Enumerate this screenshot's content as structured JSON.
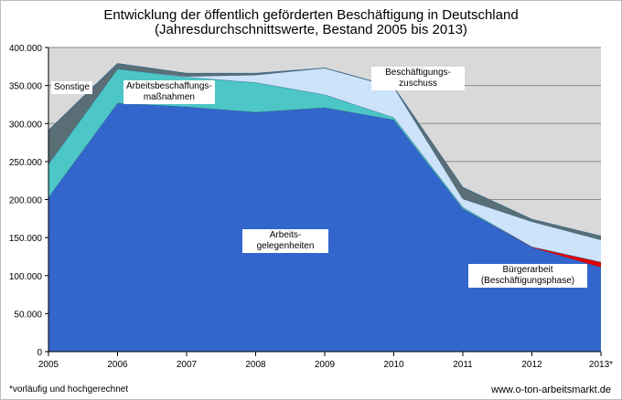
{
  "chart_data": {
    "type": "area",
    "stacked": true,
    "title": "Entwicklung  der öffentlich geförderten Beschäftigung in Deutschland",
    "subtitle": "(Jahresdurchschnittswerte, Bestand 2005 bis 2013)",
    "categories": [
      "2005",
      "2006",
      "2007",
      "2008",
      "2009",
      "2010",
      "2011",
      "2012",
      "2013*"
    ],
    "y_ticks": [
      "0",
      "50.000",
      "100.000",
      "150.000",
      "200.000",
      "250.000",
      "300.000",
      "350.000",
      "400.000"
    ],
    "ylim": [
      0,
      400000
    ],
    "grid": true,
    "series": [
      {
        "name": "Arbeitsgelegenheiten",
        "label": "Arbeits-\ngelegenheiten",
        "color": "#3366CC",
        "values": [
          203000,
          327000,
          322000,
          315000,
          321000,
          305000,
          188000,
          137000,
          111000
        ]
      },
      {
        "name": "Bürgerarbeit (Beschäftigungsphase)",
        "label": "Bürgerarbeit\n(Beschäftigungsphase)",
        "color": "#E00000",
        "values": [
          0,
          0,
          0,
          0,
          0,
          0,
          0,
          1000,
          7000
        ]
      },
      {
        "name": "Arbeitsbeschaffungsmaßnahmen",
        "label": "Arbeitsbeschaffungs-\nmaßnahmen",
        "color": "#4CC6C6",
        "values": [
          44000,
          45000,
          39000,
          39000,
          17000,
          3000,
          2000,
          0,
          0
        ]
      },
      {
        "name": "Beschäftigungszuschuss",
        "label": "Beschäftigungs-\nzuschuss",
        "color": "#CCE3FA",
        "values": [
          0,
          0,
          1000,
          10000,
          35000,
          40000,
          11000,
          33000,
          29000
        ]
      },
      {
        "name": "Sonstige",
        "label": "Sonstige",
        "color": "#5A6E75",
        "values": [
          44000,
          7000,
          4000,
          2000,
          0,
          0,
          15000,
          3000,
          5000
        ]
      }
    ]
  },
  "footnote": "*vorläufig und hochgerechnet",
  "source": "www.o-ton-arbeitsmarkt.de"
}
